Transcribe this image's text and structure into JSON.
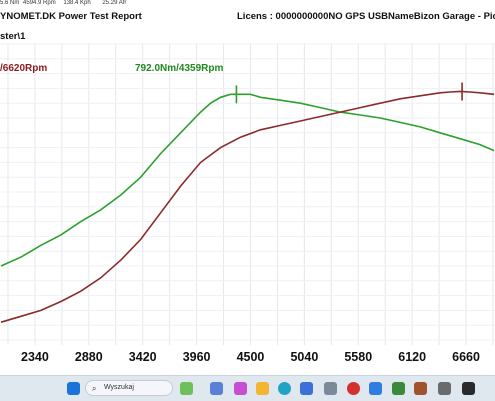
{
  "status_bar": {
    "torque": "5.6 Nm",
    "rpm": "4594.9 Rpm",
    "speed": "138.4 Kph",
    "afr": "25.29 Afr"
  },
  "header": {
    "left_title": "YNOMET.DK  Power Test Report",
    "right_title": "Licens :  0000000000NO GPS USBNameBizon Garage - Pic",
    "path": "ster\\1"
  },
  "chart_data": {
    "type": "line",
    "x_ticks": [
      2340,
      2880,
      3420,
      3960,
      4500,
      5040,
      5580,
      6120,
      6660
    ],
    "xlim": [
      1990,
      6950
    ],
    "grid": true,
    "annotations": [
      {
        "text": "/6620Rpm",
        "color": "#8b1c1c"
      },
      {
        "text": "792.0Nm/4359Rpm",
        "color": "#1f8a1f"
      }
    ],
    "series": [
      {
        "color": "#2ea02e",
        "x": [
          2000,
          2200,
          2400,
          2600,
          2800,
          3000,
          3200,
          3400,
          3600,
          3800,
          4000,
          4100,
          4200,
          4300,
          4400,
          4500,
          4600,
          4800,
          5000,
          5200,
          5400,
          5600,
          5800,
          6000,
          6200,
          6400,
          6600,
          6800,
          6940
        ],
        "y": [
          0.25,
          0.28,
          0.32,
          0.355,
          0.4,
          0.44,
          0.49,
          0.55,
          0.63,
          0.7,
          0.77,
          0.8,
          0.82,
          0.83,
          0.83,
          0.83,
          0.82,
          0.81,
          0.8,
          0.785,
          0.77,
          0.76,
          0.75,
          0.735,
          0.72,
          0.7,
          0.68,
          0.66,
          0.64
        ],
        "marker_x": 4359
      },
      {
        "color": "#8b2a2a",
        "x": [
          2000,
          2200,
          2400,
          2600,
          2800,
          3000,
          3200,
          3400,
          3600,
          3800,
          4000,
          4200,
          4400,
          4600,
          4800,
          5000,
          5200,
          5400,
          5600,
          5800,
          6000,
          6200,
          6400,
          6500,
          6600,
          6700,
          6800,
          6940
        ],
        "y": [
          0.06,
          0.08,
          0.1,
          0.13,
          0.165,
          0.21,
          0.27,
          0.34,
          0.43,
          0.52,
          0.6,
          0.65,
          0.685,
          0.71,
          0.725,
          0.74,
          0.755,
          0.77,
          0.785,
          0.8,
          0.815,
          0.825,
          0.835,
          0.838,
          0.84,
          0.838,
          0.835,
          0.83
        ],
        "marker_x": 6620
      }
    ]
  },
  "taskbar": {
    "search_placeholder": "Wyszukaj",
    "icons": [
      "windows-start-icon",
      "search-icon",
      "weather-icon",
      "widgets-icon",
      "camera-icon",
      "folder-icon",
      "edge-icon",
      "store-icon",
      "photos-icon",
      "record-icon",
      "app-icon",
      "app-icon-2",
      "app-icon-3"
    ],
    "accent": "#0067c0"
  }
}
